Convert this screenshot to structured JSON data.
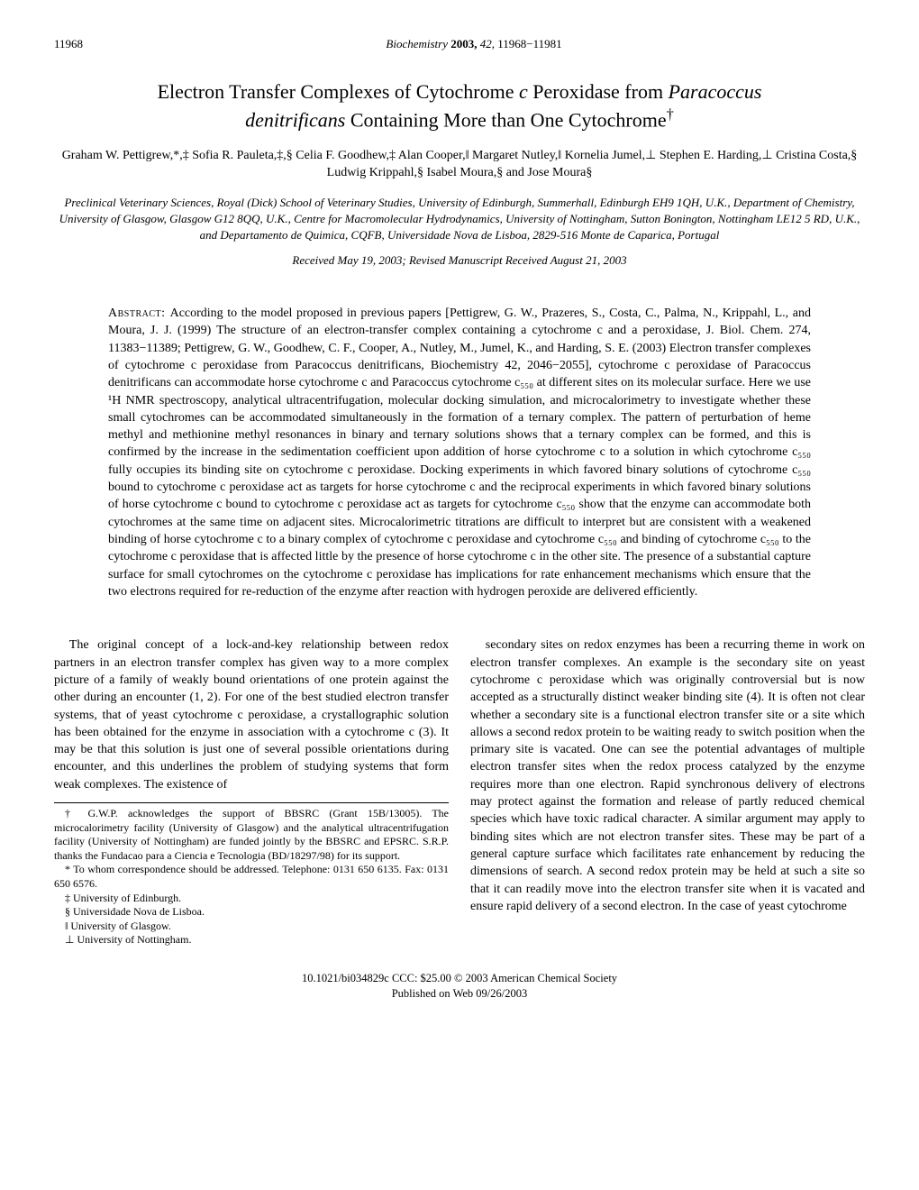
{
  "page_number": "11968",
  "journal_ref_prefix": "Biochemistry ",
  "journal_year": "2003,",
  "journal_vol": " 42,",
  "journal_pages": " 11968−11981",
  "title_line1_a": "Electron Transfer Complexes of Cytochrome ",
  "title_line1_b": "c",
  "title_line1_c": " Peroxidase from ",
  "title_line1_d": "Paracoccus",
  "title_line2_a": "denitrificans",
  "title_line2_b": " Containing More than One Cytochrome",
  "title_dagger": "†",
  "authors": "Graham W. Pettigrew,*,‡ Sofia R. Pauleta,‡,§ Celia F. Goodhew,‡ Alan Cooper,‖ Margaret Nutley,‖ Kornelia Jumel,⊥ Stephen E. Harding,⊥ Cristina Costa,§ Ludwig Krippahl,§ Isabel Moura,§ and Jose Moura§",
  "affiliations": "Preclinical Veterinary Sciences, Royal (Dick) School of Veterinary Studies, University of Edinburgh, Summerhall, Edinburgh EH9 1QH, U.K., Department of Chemistry, University of Glasgow, Glasgow G12 8QQ, U.K., Centre for Macromolecular Hydrodynamics, University of Nottingham, Sutton Bonington, Nottingham LE12 5 RD, U.K., and Departamento de Quimica, CQFB, Universidade Nova de Lisboa, 2829-516 Monte de Caparica, Portugal",
  "dates": "Received May 19, 2003; Revised Manuscript Received August 21, 2003",
  "abstract_label": "Abstract:  ",
  "abstract_body": "According to the model proposed in previous papers [Pettigrew, G. W., Prazeres, S., Costa, C., Palma, N., Krippahl, L., and Moura, J. J. (1999) The structure of an electron-transfer complex containing a cytochrome c and a peroxidase, J. Biol. Chem. 274, 11383−11389; Pettigrew, G. W., Goodhew, C. F., Cooper, A., Nutley, M., Jumel, K., and Harding, S. E. (2003) Electron transfer complexes of cytochrome c peroxidase from Paracoccus denitrificans, Biochemistry 42, 2046−2055], cytochrome c peroxidase of Paracoccus denitrificans can accommodate horse cytochrome c and Paracoccus cytochrome c₅₅₀ at different sites on its molecular surface. Here we use ¹H NMR spectroscopy, analytical ultracentrifugation, molecular docking simulation, and microcalorimetry to investigate whether these small cytochromes can be accommodated simultaneously in the formation of a ternary complex. The pattern of perturbation of heme methyl and methionine methyl resonances in binary and ternary solutions shows that a ternary complex can be formed, and this is confirmed by the increase in the sedimentation coefficient upon addition of horse cytochrome c to a solution in which cytochrome c₅₅₀ fully occupies its binding site on cytochrome c peroxidase. Docking experiments in which favored binary solutions of cytochrome c₅₅₀ bound to cytochrome c peroxidase act as targets for horse cytochrome c and the reciprocal experiments in which favored binary solutions of horse cytochrome c bound to cytochrome c peroxidase act as targets for cytochrome c₅₅₀ show that the enzyme can accommodate both cytochromes at the same time on adjacent sites. Microcalorimetric titrations are difficult to interpret but are consistent with a weakened binding of horse cytochrome c to a binary complex of cytochrome c peroxidase and cytochrome c₅₅₀ and binding of cytochrome c₅₅₀ to the cytochrome c peroxidase that is affected little by the presence of horse cytochrome c in the other site. The presence of a substantial capture surface for small cytochromes on the cytochrome c peroxidase has implications for rate enhancement mechanisms which ensure that the two electrons required for re-reduction of the enzyme after reaction with hydrogen peroxide are delivered efficiently.",
  "body_p1": "The original concept of a lock-and-key relationship between redox partners in an electron transfer complex has given way to a more complex picture of a family of weakly bound orientations of one protein against the other during an encounter (1, 2). For one of the best studied electron transfer systems, that of yeast cytochrome c peroxidase, a crystallographic solution has been obtained for the enzyme in association with a cytochrome c (3). It may be that this solution is just one of several possible orientations during encounter, and this underlines the problem of studying systems that form weak complexes. The existence of",
  "body_p2": "secondary sites on redox enzymes has been a recurring theme in work on electron transfer complexes. An example is the secondary site on yeast cytochrome c peroxidase which was originally controversial but is now accepted as a structurally distinct weaker binding site (4). It is often not clear whether a secondary site is a functional electron transfer site or a site which allows a second redox protein to be waiting ready to switch position when the primary site is vacated. One can see the potential advantages of multiple electron transfer sites when the redox process catalyzed by the enzyme requires more than one electron. Rapid synchronous delivery of electrons may protect against the formation and release of partly reduced chemical species which have toxic radical character. A similar argument may apply to binding sites which are not electron transfer sites. These may be part of a general capture surface which facilitates rate enhancement by reducing the dimensions of search. A second redox protein may be held at such a site so that it can readily move into the electron transfer site when it is vacated and ensure rapid delivery of a second electron. In the case of yeast cytochrome",
  "footnote_funding": "† G.W.P. acknowledges the support of BBSRC (Grant 15B/13005). The microcalorimetry facility (University of Glasgow) and the analytical ultracentrifugation facility (University of Nottingham) are funded jointly by the BBSRC and EPSRC. S.R.P. thanks the Fundacao para a Ciencia e Tecnologia (BD/18297/98) for its support.",
  "footnote_corr": "* To whom correspondence should be addressed. Telephone:  0131 650 6135. Fax:  0131 650 6576.",
  "footnote_edin": "‡ University of Edinburgh.",
  "footnote_lisboa": "§ Universidade Nova de Lisboa.",
  "footnote_glasgow": "‖ University of Glasgow.",
  "footnote_nottingham": "⊥ University of Nottingham.",
  "footer_line1": "10.1021/bi034829c CCC: $25.00    © 2003 American Chemical Society",
  "footer_line2": "Published on Web 09/26/2003"
}
